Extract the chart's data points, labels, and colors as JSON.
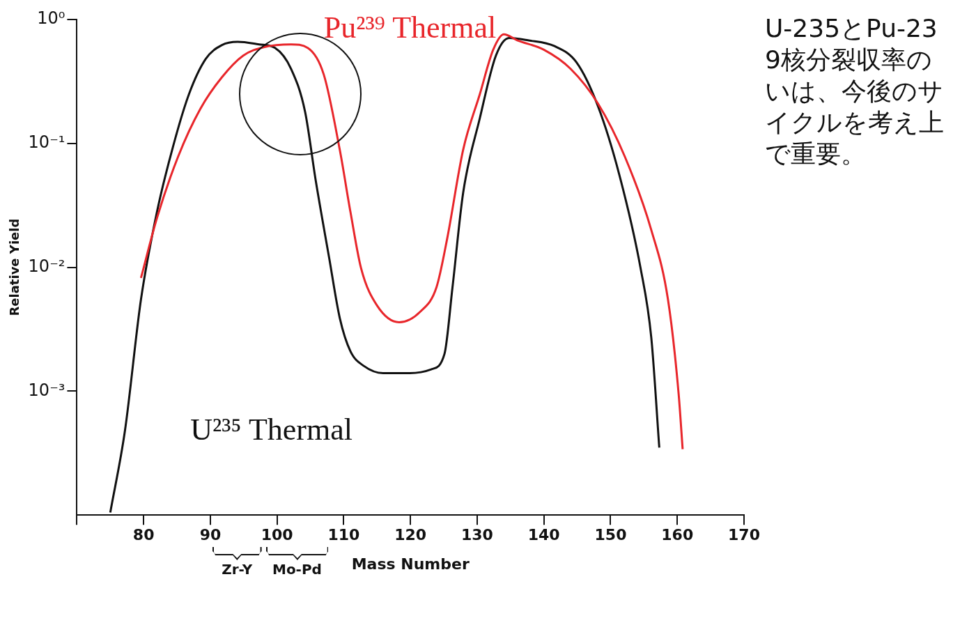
{
  "chart_data": {
    "type": "line",
    "xlabel": "Mass Number",
    "ylabel": "Relative Yield",
    "xlim": [
      70,
      170
    ],
    "xticks": [
      {
        "value": 70,
        "label": null
      },
      80,
      90,
      100,
      110,
      120,
      130,
      140,
      150,
      160,
      170
    ],
    "ylim": [
      0.0001,
      1
    ],
    "yticks": [
      {
        "value": 1,
        "label": "10⁰"
      },
      {
        "value": 0.1,
        "label": "10⁻¹"
      },
      {
        "value": 0.01,
        "label": "10⁻²"
      },
      {
        "value": 0.001,
        "label": "10⁻³"
      }
    ],
    "log": "y",
    "grid": false,
    "legend": false,
    "marker": "none",
    "line_style": "solid",
    "series": [
      {
        "name": "Pu²³⁹ Thermal",
        "color": "#e8262b",
        "x": [
          79.6,
          82,
          85.2,
          88.5,
          91.7,
          94.9,
          98.1,
          102.1,
          104.6,
          107,
          109.4,
          111,
          112.6,
          115,
          118.3,
          121.5,
          123.9,
          125.5,
          127.9,
          130.4,
          132.4,
          134,
          136,
          140,
          144,
          148.1,
          152.1,
          156.1,
          158.6,
          160.2,
          160.8
        ],
        "values": [
          0.0082,
          0.025,
          0.079,
          0.19,
          0.34,
          0.51,
          0.6,
          0.63,
          0.59,
          0.36,
          0.089,
          0.028,
          0.0098,
          0.0049,
          0.0036,
          0.0044,
          0.0069,
          0.017,
          0.089,
          0.25,
          0.57,
          0.76,
          0.68,
          0.57,
          0.4,
          0.21,
          0.079,
          0.02,
          0.0055,
          0.00095,
          0.00034
        ]
      },
      {
        "name": "U²³⁵ Thermal",
        "color": "#111111",
        "x": [
          75,
          77.2,
          79.6,
          82,
          84.4,
          86.8,
          89.3,
          91.7,
          94.1,
          97.3,
          99.7,
          102.1,
          104.2,
          105.8,
          107.8,
          109.4,
          111,
          113,
          115.9,
          119.9,
          123.1,
          125.1,
          126.3,
          127.9,
          130.4,
          132.8,
          134.8,
          137.6,
          141.6,
          144.9,
          148.1,
          151.3,
          154.5,
          156.1,
          157.3
        ],
        "values": [
          0.000105,
          0.00048,
          0.0055,
          0.028,
          0.094,
          0.25,
          0.48,
          0.62,
          0.66,
          0.63,
          0.59,
          0.4,
          0.18,
          0.05,
          0.012,
          0.0039,
          0.0021,
          0.0016,
          0.0014,
          0.0014,
          0.0015,
          0.002,
          0.0069,
          0.04,
          0.16,
          0.51,
          0.71,
          0.68,
          0.61,
          0.45,
          0.2,
          0.056,
          0.0098,
          0.0027,
          0.00035
        ]
      }
    ],
    "annotations": [
      "U-235とPu-239核分裂収率のいは、今後のサイクルを考え上で重要。",
      "Zr-Y",
      "Mo-Pd"
    ]
  }
}
